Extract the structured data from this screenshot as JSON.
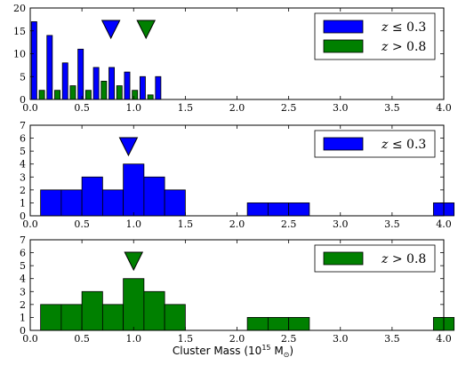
{
  "colors": {
    "low_z": "#0000ff",
    "high_z": "#008000",
    "edge": "#000000"
  },
  "xlabel": "Cluster Mass (10",
  "xlabel_exp": "15",
  "xlabel_unit": " M",
  "xlabel_sun": "⊙",
  "xlabel_close": ")",
  "chart_data": [
    {
      "type": "bar",
      "panel": "top",
      "xlim": [
        0,
        4.0
      ],
      "ylim": [
        0,
        20
      ],
      "xticks": [
        "0.0",
        "0.5",
        "1.0",
        "1.5",
        "2.0",
        "2.5",
        "3.0",
        "3.5",
        "4.0"
      ],
      "yticks": [
        "0",
        "5",
        "10",
        "15",
        "20"
      ],
      "bin_edges": [
        0.0,
        0.15,
        0.3,
        0.45,
        0.6,
        0.75,
        0.9,
        1.05,
        1.2,
        1.35,
        1.5,
        1.65,
        1.8,
        1.95,
        2.1,
        2.25,
        2.4,
        2.55,
        2.7,
        2.85,
        3.0,
        3.15,
        3.3,
        3.45,
        3.6,
        3.75,
        3.9,
        4.05
      ],
      "series": [
        {
          "label": "z ≤ 0.3",
          "color": "#0000ff",
          "values": [
            17,
            14,
            8,
            11,
            7,
            7,
            6,
            5,
            5,
            0,
            0,
            0,
            0,
            0,
            0,
            0,
            0,
            0,
            0,
            0,
            0,
            0,
            0,
            0,
            0,
            0,
            0
          ]
        },
        {
          "label": "z > 0.8",
          "color": "#008000",
          "values": [
            2,
            2,
            3,
            2,
            4,
            3,
            2,
            1,
            0,
            0,
            0,
            0,
            0,
            0,
            0,
            0,
            0,
            0,
            0,
            0,
            0,
            0,
            0,
            0,
            0,
            0,
            0
          ]
        }
      ],
      "markers": [
        {
          "x": 0.78,
          "color": "#0000ff"
        },
        {
          "x": 1.12,
          "color": "#008000"
        }
      ],
      "legend": [
        {
          "label_pre": "z",
          "label_op": " ≤ ",
          "label_val": "0.3",
          "color": "#0000ff"
        },
        {
          "label_pre": "z",
          "label_op": " > ",
          "label_val": "0.8",
          "color": "#008000"
        }
      ],
      "legend_loc": "upper right"
    },
    {
      "type": "bar",
      "panel": "middle",
      "xlim": [
        0,
        4.0
      ],
      "ylim": [
        0,
        7
      ],
      "xticks": [
        "0.0",
        "0.5",
        "1.0",
        "1.5",
        "2.0",
        "2.5",
        "3.0",
        "3.5",
        "4.0"
      ],
      "yticks": [
        "0",
        "1",
        "2",
        "3",
        "4",
        "5",
        "6",
        "7"
      ],
      "bin_edges": [
        0.1,
        0.3,
        0.5,
        0.7,
        0.9,
        1.1,
        1.3,
        1.5,
        1.7,
        1.9,
        2.1,
        2.3,
        2.5,
        2.7,
        2.9,
        3.1,
        3.3,
        3.5,
        3.7,
        3.9,
        4.1
      ],
      "series": [
        {
          "label": "z ≤ 0.3",
          "color": "#0000ff",
          "values": [
            2,
            2,
            3,
            2,
            4,
            3,
            2,
            0,
            0,
            0,
            1,
            1,
            1,
            0,
            0,
            0,
            0,
            0,
            0,
            1
          ]
        }
      ],
      "markers": [
        {
          "x": 0.95,
          "color": "#0000ff"
        }
      ],
      "legend": [
        {
          "label_pre": "z",
          "label_op": " ≤ ",
          "label_val": "0.3",
          "color": "#0000ff"
        }
      ],
      "legend_loc": "upper right"
    },
    {
      "type": "bar",
      "panel": "bottom",
      "xlim": [
        0,
        4.0
      ],
      "ylim": [
        0,
        7
      ],
      "xticks": [
        "0.0",
        "0.5",
        "1.0",
        "1.5",
        "2.0",
        "2.5",
        "3.0",
        "3.5",
        "4.0"
      ],
      "yticks": [
        "0",
        "1",
        "2",
        "3",
        "4",
        "5",
        "6",
        "7"
      ],
      "bin_edges": [
        0.1,
        0.3,
        0.5,
        0.7,
        0.9,
        1.1,
        1.3,
        1.5,
        1.7,
        1.9,
        2.1,
        2.3,
        2.5,
        2.7,
        2.9,
        3.1,
        3.3,
        3.5,
        3.7,
        3.9,
        4.1
      ],
      "series": [
        {
          "label": "z > 0.8",
          "color": "#008000",
          "values": [
            2,
            2,
            3,
            2,
            4,
            3,
            2,
            0,
            0,
            0,
            1,
            1,
            1,
            0,
            0,
            0,
            0,
            0,
            0,
            1
          ]
        }
      ],
      "markers": [
        {
          "x": 1.0,
          "color": "#008000"
        }
      ],
      "legend": [
        {
          "label_pre": "z",
          "label_op": " > ",
          "label_val": "0.8",
          "color": "#008000"
        }
      ],
      "legend_loc": "upper right"
    }
  ]
}
